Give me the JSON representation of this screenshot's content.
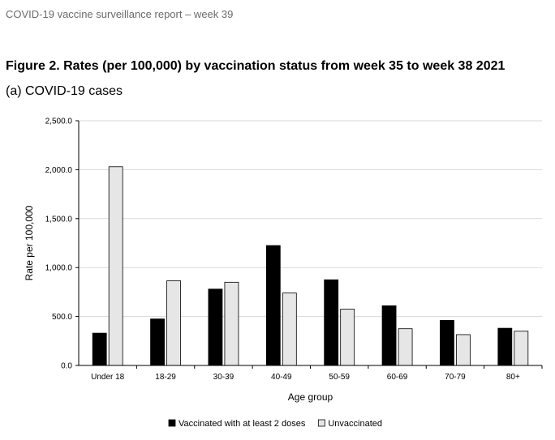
{
  "report_header": "COVID-19 vaccine surveillance report – week 39",
  "figure_title": "Figure 2. Rates (per 100,000) by vaccination status from week 35 to week 38 2021",
  "chart_data": {
    "type": "bar",
    "title": "(a) COVID-19 cases",
    "xlabel": "Age group",
    "ylabel": "Rate per 100,000",
    "ylim": [
      0,
      2500
    ],
    "yticks": [
      "0.0",
      "500.0",
      "1,000.0",
      "1,500.0",
      "2,000.0",
      "2,500.0"
    ],
    "grid": true,
    "legend_position": "bottom",
    "categories": [
      "Under 18",
      "18-29",
      "30-39",
      "40-49",
      "50-59",
      "60-69",
      "70-79",
      "80+"
    ],
    "series": [
      {
        "name": "Vaccinated with at least 2 doses",
        "color": "#000000",
        "values": [
          330,
          475,
          780,
          1225,
          875,
          610,
          460,
          380
        ]
      },
      {
        "name": "Unvaccinated",
        "color": "#e6e6e6",
        "values": [
          2030,
          865,
          850,
          740,
          575,
          375,
          315,
          350
        ]
      }
    ]
  }
}
